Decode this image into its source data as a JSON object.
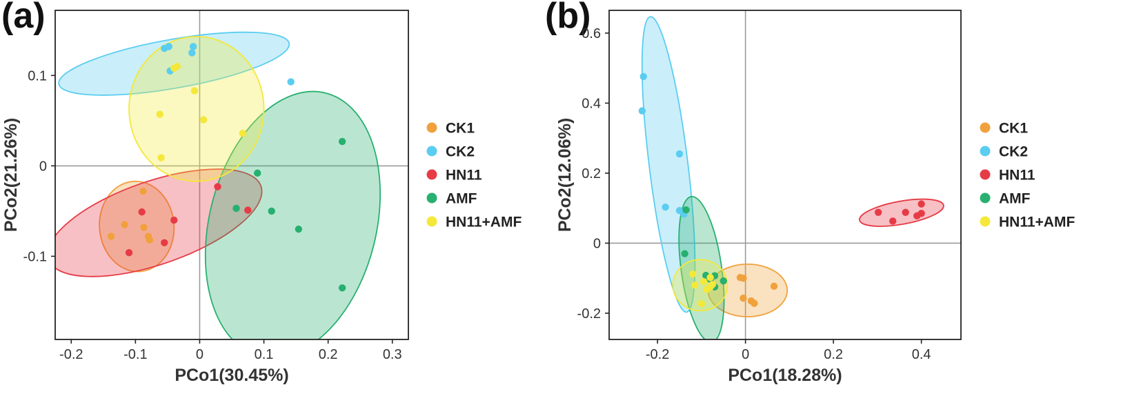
{
  "colors": {
    "CK1": "#F0A13C",
    "CK2": "#5ACDF0",
    "HN11": "#E63B46",
    "AMF": "#27B06F",
    "HN11+AMF": "#F4E83A"
  },
  "chart_data": [
    {
      "type": "scatter",
      "panel": "(a)",
      "xlabel": "PCo1(30.45%)",
      "ylabel": "PCo2(21.26%)",
      "xlim": [
        -0.225,
        0.325
      ],
      "ylim": [
        -0.192,
        0.172
      ],
      "xticks": [
        -0.2,
        -0.1,
        0,
        0.1,
        0.2,
        0.3
      ],
      "xtick_labels": [
        "-0.2",
        "-0.1",
        "0",
        "0.1",
        "0.2",
        "0.3"
      ],
      "yticks": [
        -0.1,
        0,
        0.1
      ],
      "ytick_labels": [
        "-0.1",
        "0",
        "0.1"
      ],
      "legend": [
        "CK1",
        "CK2",
        "HN11",
        "AMF",
        "HN11+AMF"
      ],
      "series": [
        {
          "name": "CK1",
          "points": [
            [
              -0.088,
              -0.028
            ],
            [
              -0.117,
              -0.065
            ],
            [
              -0.138,
              -0.078
            ],
            [
              -0.087,
              -0.068
            ],
            [
              -0.08,
              -0.078
            ],
            [
              -0.078,
              -0.082
            ]
          ],
          "ellipse": {
            "cx": -0.098,
            "cy": -0.067,
            "rx": 0.058,
            "ry": 0.05,
            "angle": -5
          }
        },
        {
          "name": "CK2",
          "points": [
            [
              -0.055,
              0.13
            ],
            [
              -0.048,
              0.132
            ],
            [
              -0.01,
              0.132
            ],
            [
              -0.012,
              0.125
            ],
            [
              -0.046,
              0.105
            ],
            [
              0.142,
              0.093
            ]
          ],
          "ellipse": {
            "cx": -0.04,
            "cy": 0.113,
            "rx": 0.182,
            "ry": 0.027,
            "angle": -10
          }
        },
        {
          "name": "HN11",
          "points": [
            [
              -0.09,
              -0.051
            ],
            [
              -0.04,
              -0.06
            ],
            [
              -0.055,
              -0.085
            ],
            [
              -0.11,
              -0.096
            ],
            [
              0.028,
              -0.023
            ],
            [
              0.075,
              -0.049
            ]
          ],
          "ellipse": {
            "cx": -0.07,
            "cy": -0.063,
            "rx": 0.175,
            "ry": 0.046,
            "angle": -19
          }
        },
        {
          "name": "AMF",
          "points": [
            [
              0.222,
              0.027
            ],
            [
              0.09,
              -0.008
            ],
            [
              0.057,
              -0.047
            ],
            [
              0.112,
              -0.05
            ],
            [
              0.154,
              -0.07
            ],
            [
              0.222,
              -0.135
            ]
          ],
          "ellipse": {
            "cx": 0.145,
            "cy": -0.065,
            "rx": 0.13,
            "ry": 0.15,
            "angle": 14
          }
        },
        {
          "name": "HN11+AMF",
          "points": [
            [
              -0.035,
              0.11
            ],
            [
              -0.04,
              0.108
            ],
            [
              -0.008,
              0.083
            ],
            [
              -0.062,
              0.057
            ],
            [
              0.006,
              0.051
            ],
            [
              0.067,
              0.036
            ],
            [
              -0.06,
              0.009
            ]
          ],
          "ellipse": {
            "cx": -0.005,
            "cy": 0.063,
            "rx": 0.105,
            "ry": 0.08,
            "angle": 0
          }
        }
      ]
    },
    {
      "type": "scatter",
      "panel": "(b)",
      "xlabel": "PCo1(18.28%)",
      "ylabel": "PCo2(12.06%)",
      "xlim": [
        -0.31,
        0.49
      ],
      "ylim": [
        -0.275,
        0.665
      ],
      "xticks": [
        -0.2,
        0,
        0.2,
        0.4
      ],
      "xtick_labels": [
        "-0.2",
        "0",
        "0.2",
        "0.4"
      ],
      "yticks": [
        -0.2,
        0,
        0.2,
        0.4,
        0.6
      ],
      "ytick_labels": [
        "-0.2",
        "0",
        "0.2",
        "0.4",
        "0.6"
      ],
      "legend": [
        "CK1",
        "CK2",
        "HN11",
        "AMF",
        "HN11+AMF"
      ],
      "series": [
        {
          "name": "CK1",
          "points": [
            [
              -0.012,
              -0.098
            ],
            [
              -0.005,
              -0.1
            ],
            [
              0.065,
              -0.123
            ],
            [
              -0.005,
              -0.157
            ],
            [
              0.013,
              -0.165
            ],
            [
              0.02,
              -0.172
            ]
          ],
          "ellipse": {
            "cx": 0.005,
            "cy": -0.135,
            "rx": 0.09,
            "ry": 0.075,
            "angle": 0
          }
        },
        {
          "name": "CK2",
          "points": [
            [
              -0.232,
              0.476
            ],
            [
              -0.235,
              0.378
            ],
            [
              -0.15,
              0.255
            ],
            [
              -0.182,
              0.103
            ],
            [
              -0.15,
              0.093
            ],
            [
              -0.14,
              0.083
            ]
          ],
          "ellipse": {
            "cx": -0.175,
            "cy": 0.225,
            "rx": 0.044,
            "ry": 0.425,
            "angle": -7
          }
        },
        {
          "name": "HN11",
          "points": [
            [
              0.302,
              0.088
            ],
            [
              0.364,
              0.088
            ],
            [
              0.4,
              0.112
            ],
            [
              0.4,
              0.085
            ],
            [
              0.39,
              0.078
            ],
            [
              0.335,
              0.063
            ]
          ],
          "ellipse": {
            "cx": 0.355,
            "cy": 0.087,
            "rx": 0.097,
            "ry": 0.033,
            "angle": -10
          }
        },
        {
          "name": "AMF",
          "points": [
            [
              -0.135,
              0.095
            ],
            [
              -0.138,
              -0.03
            ],
            [
              -0.09,
              -0.092
            ],
            [
              -0.07,
              -0.093
            ],
            [
              -0.08,
              -0.103
            ],
            [
              -0.05,
              -0.108
            ],
            [
              -0.07,
              -0.125
            ]
          ],
          "ellipse": {
            "cx": -0.1,
            "cy": -0.075,
            "rx": 0.046,
            "ry": 0.21,
            "angle": -8
          }
        },
        {
          "name": "HN11+AMF",
          "points": [
            [
              -0.12,
              -0.088
            ],
            [
              -0.08,
              -0.098
            ],
            [
              -0.095,
              -0.11
            ],
            [
              -0.075,
              -0.118
            ],
            [
              -0.115,
              -0.12
            ],
            [
              -0.088,
              -0.132
            ],
            [
              -0.08,
              -0.125
            ],
            [
              -0.1,
              -0.173
            ]
          ],
          "ellipse": {
            "cx": -0.103,
            "cy": -0.12,
            "rx": 0.062,
            "ry": 0.073,
            "angle": 0
          }
        }
      ]
    }
  ]
}
